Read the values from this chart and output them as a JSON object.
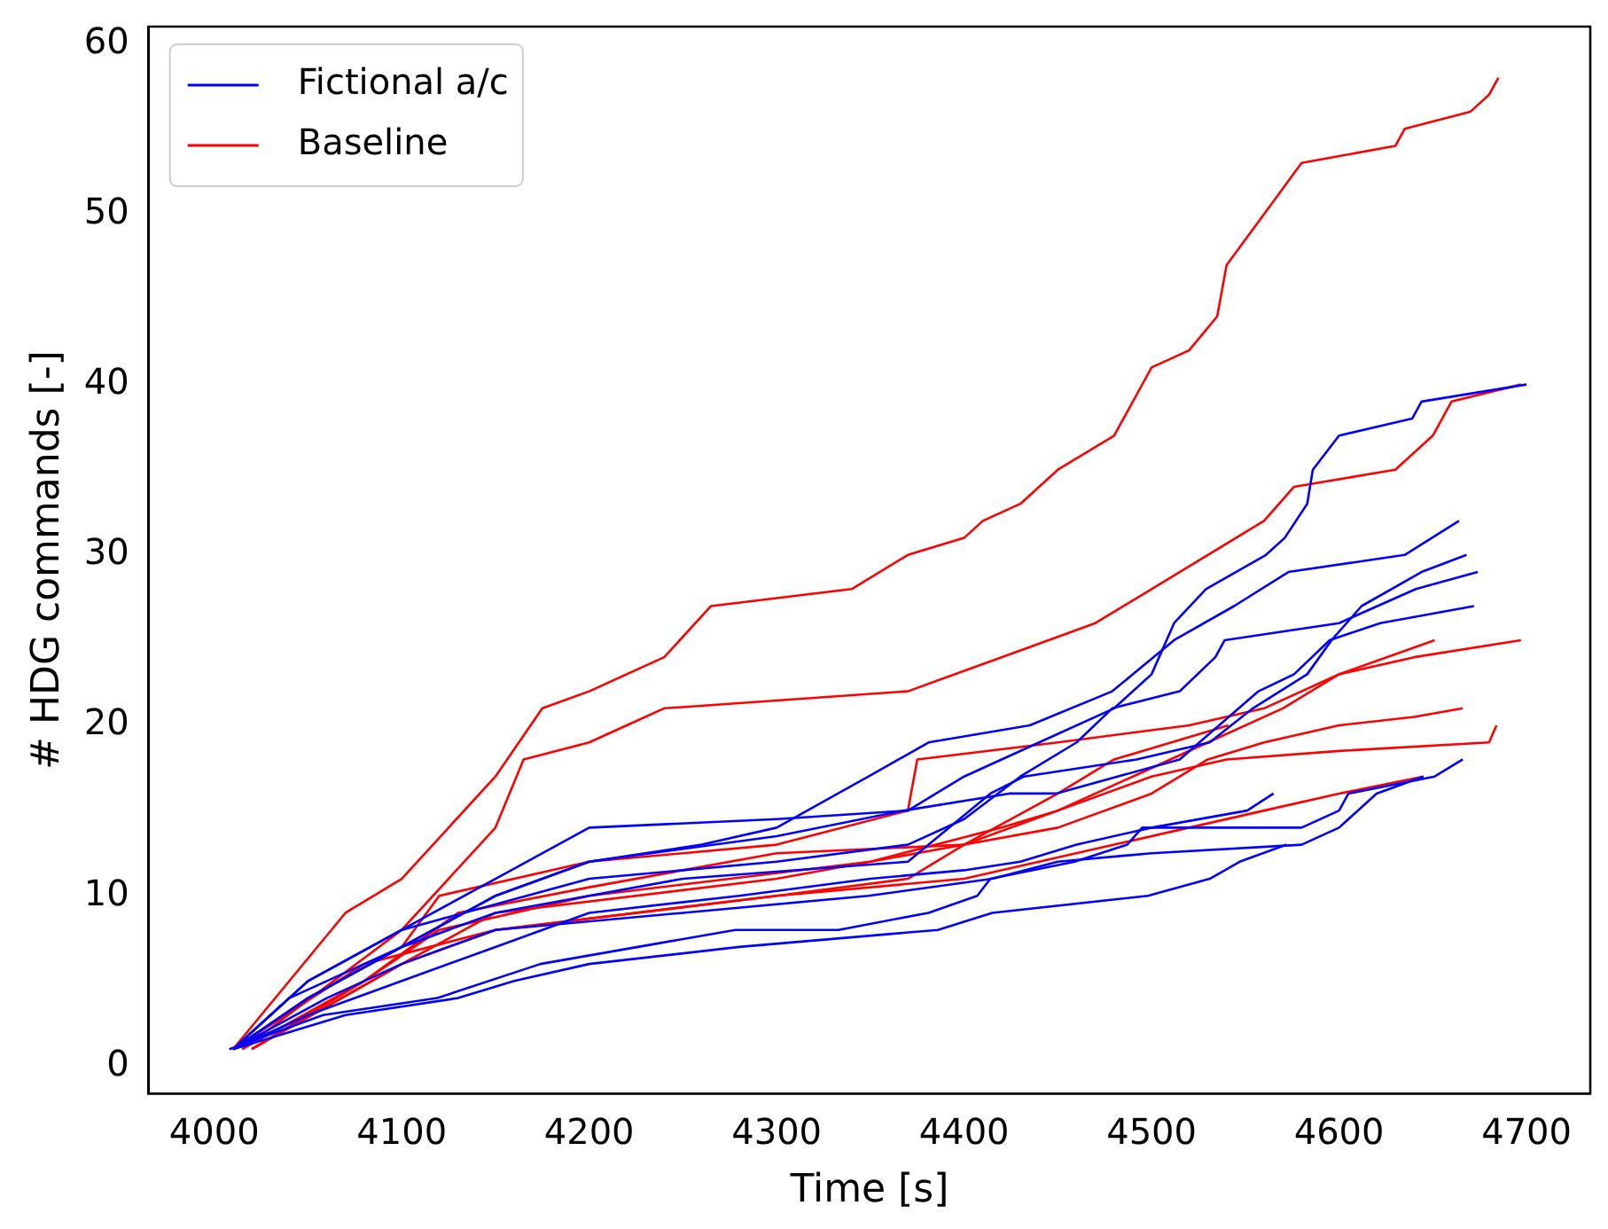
{
  "chart_data": {
    "type": "line",
    "xlabel": "Time [s]",
    "ylabel": "# HDG commands [-]",
    "xlim": [
      3965,
      4734
    ],
    "ylim": [
      -1.6,
      61
    ],
    "xticks": [
      4000,
      4100,
      4200,
      4300,
      4400,
      4500,
      4600,
      4700
    ],
    "yticks": [
      0,
      10,
      20,
      30,
      40,
      50,
      60
    ],
    "grid": false,
    "legend": "top left",
    "marker": "none",
    "line_style": "solid",
    "series": [
      {
        "name": "Fictional a/c",
        "color": "#0000ff",
        "x": [
          4010,
          4050,
          4100,
          4150,
          4200,
          4300,
          4370,
          4400,
          4440,
          4480,
          4500,
          4512,
          4529,
          4561,
          4571,
          4583,
          4586,
          4600,
          4639,
          4644,
          4700
        ],
        "values": [
          1,
          5,
          8,
          11,
          14,
          14.5,
          15,
          17,
          19,
          21,
          23,
          26,
          28,
          30,
          31,
          33,
          35,
          37,
          38,
          39,
          40
        ]
      },
      {
        "name": "Baseline",
        "color": "#ff0000",
        "x": [
          4010,
          4070,
          4100,
          4150,
          4175,
          4200,
          4220,
          4240,
          4265,
          4340,
          4370,
          4400,
          4410,
          4430,
          4450,
          4480,
          4500,
          4520,
          4535,
          4540,
          4560,
          4580,
          4630,
          4635,
          4670,
          4680,
          4685
        ],
        "values": [
          1,
          9,
          11,
          17,
          21,
          22,
          23,
          24,
          27,
          28,
          30,
          31,
          32,
          33,
          35,
          37,
          41,
          42,
          44,
          47,
          50,
          53,
          54,
          55,
          56,
          57,
          58
        ]
      },
      {
        "color": "#0000ff",
        "x": [
          4010,
          4040,
          4100,
          4150,
          4200,
          4260,
          4300,
          4349,
          4381,
          4435,
          4479,
          4512,
          4544,
          4573,
          4635,
          4664
        ],
        "values": [
          1,
          4,
          7,
          10,
          12,
          13,
          14,
          17,
          19,
          20,
          22,
          25,
          27,
          29,
          30,
          32
        ]
      },
      {
        "color": "#0000ff",
        "x": [
          4010,
          4050,
          4100,
          4200,
          4300,
          4370,
          4400,
          4430,
          4460,
          4479,
          4515,
          4534,
          4539,
          4600,
          4641,
          4674
        ],
        "values": [
          1,
          5,
          8,
          11,
          12,
          13,
          14.5,
          17,
          19,
          21,
          22,
          24,
          25,
          26,
          28,
          29
        ]
      },
      {
        "color": "#0000ff",
        "x": [
          4010,
          4050,
          4100,
          4150,
          4250,
          4370,
          4414,
          4432,
          4492,
          4531,
          4554,
          4583,
          4596,
          4612,
          4644,
          4668
        ],
        "values": [
          1,
          4,
          7,
          9,
          11,
          12,
          16,
          17,
          18,
          19,
          21,
          23,
          25,
          27,
          29,
          30
        ]
      },
      {
        "color": "#0000ff",
        "x": [
          4010,
          4050,
          4100,
          4150,
          4200,
          4300,
          4368,
          4424,
          4449,
          4515,
          4557,
          4576,
          4595,
          4622,
          4672
        ],
        "values": [
          1,
          4,
          7,
          10,
          12,
          13.5,
          15,
          16,
          16,
          18,
          22,
          23,
          25,
          26,
          27
        ]
      },
      {
        "color": "#0000ff",
        "x": [
          4008,
          4058,
          4119,
          4174,
          4226,
          4278,
          4333,
          4381,
          4407,
          4414,
          4459,
          4487,
          4495,
          4580,
          4600,
          4605,
          4651,
          4666
        ],
        "values": [
          1,
          3,
          4,
          6,
          7,
          8,
          8,
          9,
          10,
          11,
          12,
          13,
          14,
          14,
          15,
          16,
          17,
          18
        ]
      },
      {
        "color": "#0000ff",
        "x": [
          4010,
          4050,
          4100,
          4150,
          4200,
          4280,
          4350,
          4400,
          4430,
          4460,
          4500,
          4551,
          4565
        ],
        "values": [
          1,
          3,
          5,
          7,
          9,
          10,
          11,
          11.5,
          12,
          13,
          14,
          15,
          16
        ]
      },
      {
        "color": "#0000ff",
        "x": [
          4010,
          4040,
          4070,
          4130,
          4160,
          4200,
          4280,
          4386,
          4415,
          4498,
          4531,
          4547,
          4572
        ],
        "values": [
          1,
          2,
          3,
          4,
          5,
          6,
          7,
          8,
          9,
          10,
          11,
          12,
          13
        ]
      },
      {
        "color": "#0000ff",
        "x": [
          4010,
          4060,
          4100,
          4150,
          4250,
          4349,
          4415,
          4450,
          4500,
          4580,
          4600,
          4620,
          4645
        ],
        "values": [
          1,
          4,
          6,
          8,
          9,
          10,
          11,
          12,
          12.5,
          13,
          14,
          16,
          17
        ]
      },
      {
        "color": "#ff0000",
        "x": [
          4015,
          4100,
          4150,
          4165,
          4200,
          4220,
          4240,
          4370,
          4420,
          4470,
          4500,
          4530,
          4560,
          4576,
          4630,
          4650,
          4660,
          4697
        ],
        "values": [
          1,
          8,
          14,
          18,
          19,
          20,
          21,
          22,
          24,
          26,
          28,
          30,
          32,
          34,
          35,
          37,
          39,
          40
        ]
      },
      {
        "color": "#ff0000",
        "x": [
          4010,
          4050,
          4100,
          4120,
          4200,
          4300,
          4370,
          4375,
          4450,
          4520,
          4560,
          4600,
          4640,
          4697
        ],
        "values": [
          1,
          4,
          7,
          10,
          12,
          13,
          15,
          18,
          19,
          20,
          21,
          23,
          24,
          25
        ]
      },
      {
        "color": "#ff0000",
        "x": [
          4015,
          4080,
          4130,
          4200,
          4300,
          4400,
          4450,
          4490,
          4530,
          4570,
          4600,
          4651
        ],
        "values": [
          1,
          5,
          9,
          10.5,
          12.5,
          13,
          15,
          17,
          19,
          21,
          23,
          25
        ]
      },
      {
        "color": "#ff0000",
        "x": [
          4020,
          4100,
          4150,
          4300,
          4400,
          4450,
          4500,
          4530,
          4560,
          4600,
          4640,
          4666
        ],
        "values": [
          1,
          6,
          9,
          11,
          13,
          14,
          16,
          18,
          19,
          20,
          20.5,
          21
        ]
      },
      {
        "color": "#ff0000",
        "x": [
          4020,
          4080,
          4120,
          4200,
          4350,
          4420,
          4450,
          4500,
          4540,
          4600,
          4680,
          4684
        ],
        "values": [
          1,
          5,
          8,
          10,
          12,
          14,
          15,
          17,
          18,
          18.5,
          19,
          20
        ]
      },
      {
        "color": "#ff0000",
        "x": [
          4010,
          4080,
          4150,
          4300,
          4400,
          4480,
          4520,
          4560,
          4600,
          4645
        ],
        "values": [
          1,
          6,
          8,
          10,
          11,
          13,
          14,
          15,
          16,
          17
        ]
      },
      {
        "color": "#ff0000",
        "x": [
          4020,
          4100,
          4150,
          4300,
          4370,
          4400,
          4450,
          4480,
          4541
        ],
        "values": [
          1,
          6,
          8,
          10,
          11,
          13,
          16,
          18,
          20
        ]
      }
    ]
  }
}
